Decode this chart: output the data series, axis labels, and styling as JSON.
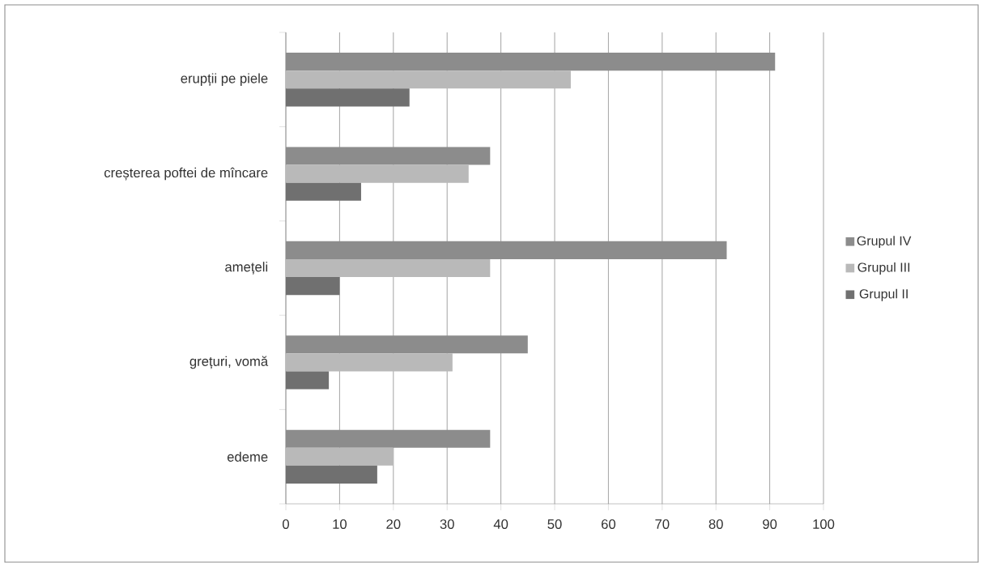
{
  "chart_data": {
    "type": "bar",
    "orientation": "horizontal",
    "categories": [
      "erupții pe piele",
      "creșterea poftei de mîncare",
      "amețeli",
      "grețuri, vomă",
      "edeme"
    ],
    "series": [
      {
        "name": "Grupul IV",
        "color": "#8c8c8c",
        "values": [
          91,
          38,
          82,
          45,
          38
        ]
      },
      {
        "name": "Grupul III",
        "color": "#b9b9b9",
        "values": [
          53,
          34,
          38,
          31,
          20
        ]
      },
      {
        "name": "Grupul II",
        "color": "#707070",
        "values": [
          23,
          14,
          10,
          8,
          17
        ]
      }
    ],
    "xlim": [
      0,
      100
    ],
    "xticks": [
      0,
      10,
      20,
      30,
      40,
      50,
      60,
      70,
      80,
      90,
      100
    ],
    "grid": "x",
    "legend": "right"
  }
}
